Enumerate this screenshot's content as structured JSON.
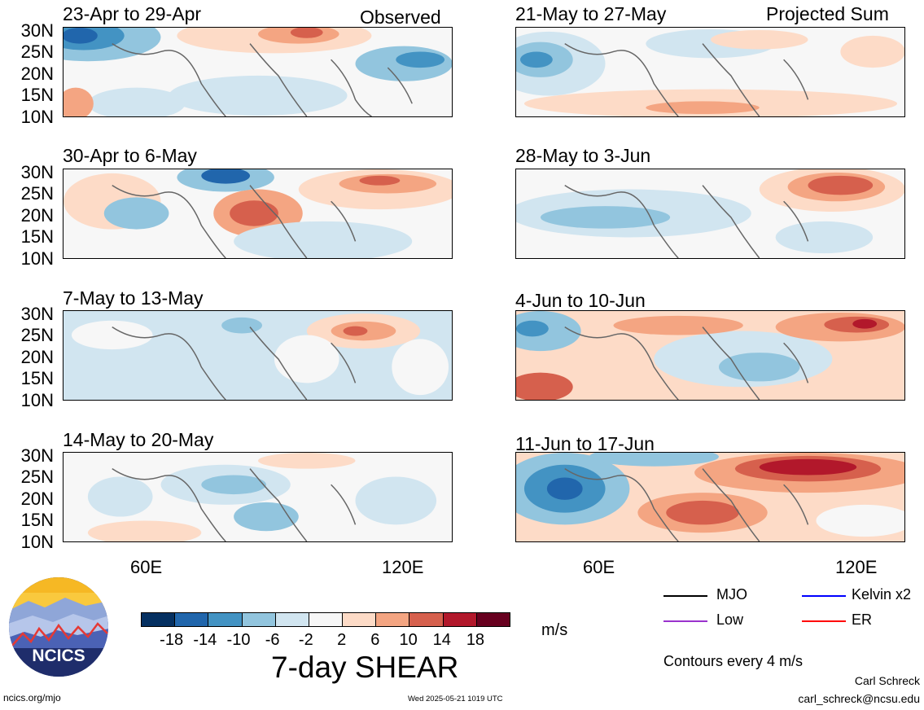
{
  "header": {
    "observed_label": "Observed",
    "projected_label": "Projected Sum"
  },
  "panels": {
    "left": [
      {
        "title": "23-Apr to 29-Apr"
      },
      {
        "title": "30-Apr to 6-May"
      },
      {
        "title": "7-May to 13-May"
      },
      {
        "title": "14-May to 20-May"
      }
    ],
    "right": [
      {
        "title": "21-May to 27-May"
      },
      {
        "title": "28-May to 3-Jun"
      },
      {
        "title": "4-Jun to 10-Jun"
      },
      {
        "title": "11-Jun to 17-Jun"
      }
    ]
  },
  "axes": {
    "y_ticks": [
      "30N",
      "25N",
      "20N",
      "15N",
      "10N"
    ],
    "x_ticks": [
      "60E",
      "120E"
    ]
  },
  "colorbar": {
    "title": "7-day SHEAR",
    "units": "m/s",
    "ticks": [
      "-18",
      "-14",
      "-10",
      "-6",
      "-2",
      "2",
      "6",
      "10",
      "14",
      "18"
    ],
    "colors": [
      "#053061",
      "#2166ac",
      "#4393c3",
      "#92c5de",
      "#d1e5f0",
      "#f7f7f7",
      "#fddbc7",
      "#f4a582",
      "#d6604d",
      "#b2182b",
      "#67001f"
    ]
  },
  "legend": {
    "items": [
      {
        "label": "MJO",
        "color": "#000000"
      },
      {
        "label": "Kelvin x2",
        "color": "#0000ff"
      },
      {
        "label": "Low",
        "color": "#9a32cd"
      },
      {
        "label": "ER",
        "color": "#ff0000"
      }
    ],
    "contours_note": "Contours every 4 m/s"
  },
  "footer": {
    "site": "ncics.org/mjo",
    "timestamp": "Wed 2025-05-21 1019 UTC",
    "author": "Carl Schreck",
    "email": "carl_schreck@ncsu.edu"
  },
  "logo": {
    "text": "NCICS"
  }
}
